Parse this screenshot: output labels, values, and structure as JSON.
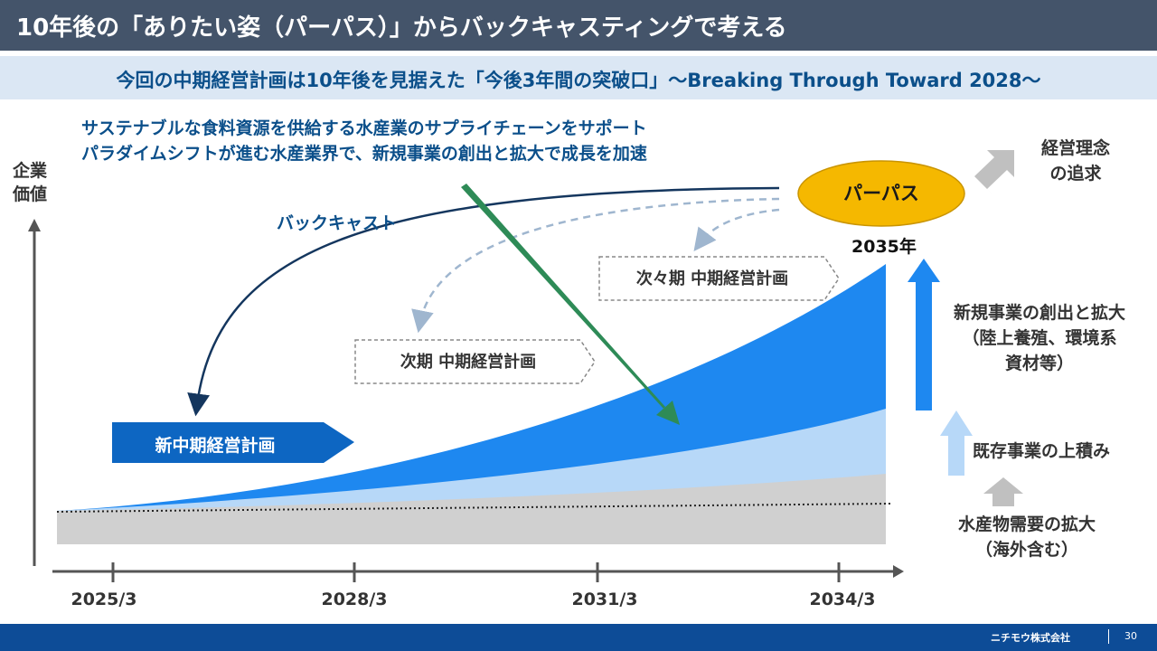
{
  "header": {
    "title": "10年後の「ありたい姿（パーパス）」からバックキャスティングで考える",
    "subtitle": "今回の中期経営計画は10年後を見据えた「今後3年間の突破口」～Breaking Through Toward 2028～"
  },
  "diagram": {
    "vision_line1": "サステナブルな食料資源を供給する水産業のサプライチェーンをサポート",
    "vision_line2": "パラダイムシフトが進む水産業界で、新規事業の創出と拡大で成長を加速",
    "y_axis_label_line1": "企業",
    "y_axis_label_line2": "価値",
    "backcast_label": "バックキャスト",
    "new_plan_label": "新中期経営計画",
    "next_plan_label": "次期 中期経営計画",
    "next2_plan_label": "次々期 中期経営計画",
    "purpose_label": "パーパス",
    "year_2035": "2035年",
    "philosophy_line1": "経営理念",
    "philosophy_line2": "の追求",
    "new_business_line1": "新規事業の創出と拡大",
    "new_business_line2": "（陸上養殖、環境系",
    "new_business_line3": "資材等）",
    "existing_business_label": "既存事業の上積み",
    "marine_demand_line1": "水産物需要の拡大",
    "marine_demand_line2": "（海外含む）",
    "x_ticks": [
      "2025/3",
      "2028/3",
      "2031/3",
      "2034/3"
    ]
  },
  "colors": {
    "title_bar": "#44546a",
    "subtitle_bar": "#dbe7f4",
    "accent_blue": "#1e88f0",
    "light_blue": "#b7d8f8",
    "gray_base": "#d0d0d0",
    "green_arrow": "#2e8b57",
    "purpose_fill": "#f5b800",
    "footer": "#0d4c97"
  },
  "footer": {
    "company": "ニチモウ株式会社",
    "page": "30"
  }
}
